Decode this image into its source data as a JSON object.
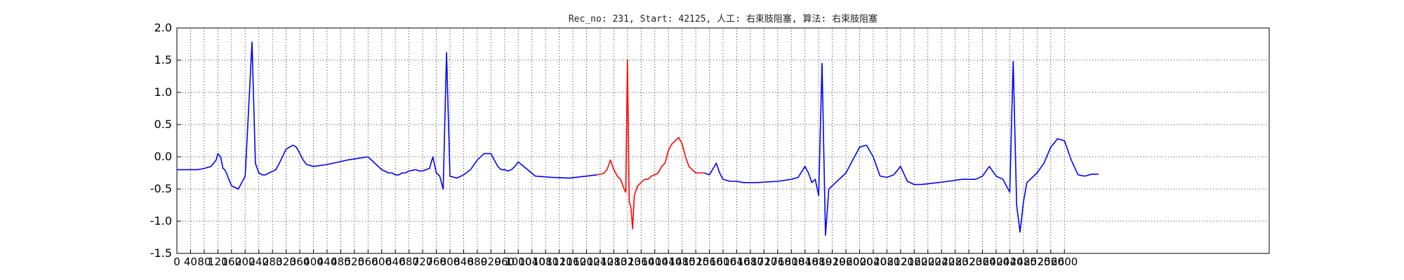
{
  "chart_data": {
    "type": "line",
    "title": "Rec_no: 231, Start: 42125, 人工: 右束肢阻塞, 算法: 右束肢阻塞",
    "xlabel": "",
    "ylabel": "",
    "xlim": [
      0,
      3200
    ],
    "ylim": [
      -1.5,
      2.0
    ],
    "grid": true,
    "grid_style": "dotted",
    "yticks": [
      "2.0",
      "1.5",
      "1.0",
      "0.5",
      "0.0",
      "-0.5",
      "-1.0",
      "-1.5"
    ],
    "xticks": [
      "0",
      "40",
      "80",
      "120",
      "160",
      "200",
      "240",
      "280",
      "320",
      "360",
      "400",
      "440",
      "480",
      "520",
      "560",
      "600",
      "640",
      "680",
      "720",
      "760",
      "800",
      "840",
      "880",
      "920",
      "960",
      "1000",
      "1040",
      "1080",
      "1120",
      "1160",
      "1200",
      "1240",
      "1280",
      "1320",
      "1360",
      "1400",
      "1440",
      "1480",
      "1520",
      "1560",
      "1600",
      "1640",
      "1680",
      "1720",
      "1760",
      "1800",
      "1840",
      "1880",
      "1920",
      "1960",
      "2000",
      "2040",
      "2080",
      "2120",
      "2160",
      "2200",
      "2240",
      "2280",
      "2320",
      "2360",
      "2400",
      "2440",
      "2480",
      "2520",
      "2560",
      "2600"
    ],
    "colors": {
      "signal": "#0000ff",
      "highlight": "#ff0000"
    },
    "series": [
      {
        "color": "#0000ff",
        "x": [
          0,
          40,
          60,
          80,
          100,
          115,
          120,
          128,
          132,
          135,
          140,
          145,
          150,
          160,
          180,
          200,
          220,
          230,
          240,
          250,
          260,
          270,
          290,
          300,
          320,
          340,
          350,
          360,
          370,
          380,
          400,
          440,
          500,
          560,
          600,
          620,
          630,
          640,
          650,
          660,
          670,
          680,
          700,
          710,
          720,
          730,
          740,
          750,
          760,
          770,
          780,
          790,
          800,
          820,
          840,
          860,
          880,
          900,
          920,
          930,
          940,
          950,
          960,
          970,
          980,
          990,
          1000,
          1050,
          1100,
          1150,
          1200,
          1230
        ],
        "y": [
          -0.2,
          -0.2,
          -0.2,
          -0.18,
          -0.15,
          -0.05,
          0.05,
          0.0,
          -0.1,
          -0.18,
          -0.2,
          -0.25,
          -0.32,
          -0.45,
          -0.5,
          -0.3,
          1.78,
          -0.1,
          -0.25,
          -0.28,
          -0.28,
          -0.25,
          -0.2,
          -0.1,
          0.12,
          0.18,
          0.15,
          0.05,
          -0.05,
          -0.12,
          -0.15,
          -0.12,
          -0.05,
          0.0,
          -0.2,
          -0.25,
          -0.25,
          -0.28,
          -0.28,
          -0.25,
          -0.25,
          -0.22,
          -0.2,
          -0.22,
          -0.22,
          -0.2,
          -0.18,
          0.0,
          -0.25,
          -0.3,
          -0.5,
          1.62,
          -0.3,
          -0.33,
          -0.28,
          -0.2,
          -0.05,
          0.05,
          0.05,
          -0.05,
          -0.15,
          -0.2,
          -0.2,
          -0.22,
          -0.2,
          -0.15,
          -0.08,
          -0.3,
          -0.32,
          -0.33,
          -0.3,
          -0.28
        ]
      },
      {
        "color": "#ff0000",
        "x": [
          1230,
          1250,
          1260,
          1270,
          1280,
          1290,
          1300,
          1310,
          1315,
          1320,
          1325,
          1330,
          1335,
          1340,
          1350,
          1360,
          1370,
          1380,
          1390,
          1400,
          1410,
          1420,
          1430,
          1440,
          1450,
          1460,
          1470,
          1480,
          1490,
          1500,
          1510,
          1520,
          1530,
          1545
        ],
        "y": [
          -0.28,
          -0.26,
          -0.2,
          -0.05,
          -0.2,
          -0.3,
          -0.35,
          -0.5,
          -0.55,
          1.5,
          -0.7,
          -0.78,
          -1.12,
          -0.6,
          -0.45,
          -0.4,
          -0.35,
          -0.35,
          -0.3,
          -0.28,
          -0.25,
          -0.15,
          -0.1,
          0.1,
          0.2,
          0.25,
          0.3,
          0.2,
          0.0,
          -0.15,
          -0.2,
          -0.25,
          -0.25,
          -0.25
        ]
      },
      {
        "color": "#0000ff",
        "x": [
          1545,
          1560,
          1580,
          1590,
          1600,
          1620,
          1640,
          1660,
          1700,
          1760,
          1800,
          1820,
          1840,
          1850,
          1860,
          1870,
          1880,
          1890,
          1900,
          1910,
          1920,
          1940,
          1960,
          1980,
          2000,
          2020,
          2040,
          2060,
          2080,
          2100,
          2120,
          2140,
          2160,
          2180,
          2200,
          2230,
          2260,
          2300,
          2340,
          2360,
          2380,
          2400,
          2420,
          2440,
          2450,
          2460,
          2470,
          2480,
          2490,
          2500,
          2520,
          2540,
          2560,
          2580,
          2600,
          2620,
          2640
        ],
        "y": [
          -0.25,
          -0.28,
          -0.1,
          -0.25,
          -0.35,
          -0.38,
          -0.38,
          -0.4,
          -0.4,
          -0.38,
          -0.35,
          -0.32,
          -0.15,
          -0.25,
          -0.4,
          -0.35,
          -0.6,
          1.45,
          -1.22,
          -0.5,
          -0.45,
          -0.35,
          -0.25,
          -0.05,
          0.15,
          0.18,
          0.0,
          -0.3,
          -0.32,
          -0.28,
          -0.15,
          -0.38,
          -0.43,
          -0.43,
          -0.42,
          -0.4,
          -0.38,
          -0.35,
          -0.35,
          -0.3,
          -0.15,
          -0.3,
          -0.35,
          -0.55,
          1.48,
          -0.75,
          -1.17,
          -0.7,
          -0.4,
          -0.35,
          -0.25,
          -0.1,
          0.15,
          0.28,
          0.25,
          -0.05,
          -0.28
        ]
      },
      {
        "color": "#0000ff",
        "x": [
          2640,
          2660,
          2680,
          2700
        ],
        "y": [
          -0.28,
          -0.3,
          -0.27,
          -0.27
        ]
      }
    ]
  }
}
